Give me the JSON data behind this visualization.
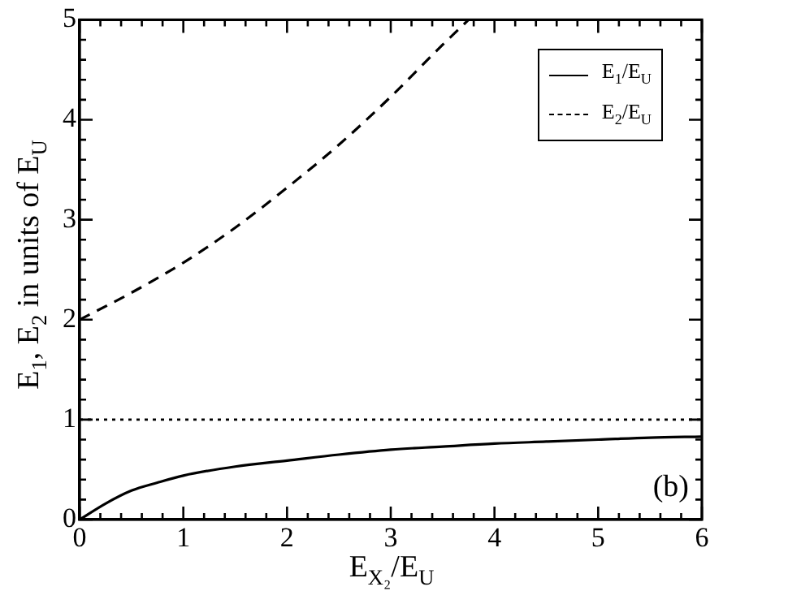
{
  "chart_data": {
    "type": "line",
    "xlabel": "E$_{X₂}$/E$_{U}$",
    "ylabel": "E$_{1}$, E$_{2}$ in units of E$_{U}$",
    "series": [
      {
        "name": "E$_{1}$/E$_{U}$",
        "color": "#000000",
        "line_style": "solid",
        "x": [
          0,
          0.25,
          0.5,
          0.75,
          1,
          1.5,
          2,
          2.5,
          3,
          3.5,
          4,
          4.5,
          5,
          5.5,
          6
        ],
        "values": [
          0,
          0.16,
          0.29,
          0.37,
          0.44,
          0.53,
          0.59,
          0.65,
          0.7,
          0.73,
          0.76,
          0.78,
          0.8,
          0.82,
          0.83
        ]
      },
      {
        "name": "E$_{2}$/E$_{U}$",
        "color": "#000000",
        "line_style": "dashed",
        "x": [
          0,
          0.5,
          1,
          1.5,
          2,
          2.5,
          3,
          3.5,
          3.75
        ],
        "values": [
          2,
          2.27,
          2.57,
          2.92,
          3.32,
          3.75,
          4.23,
          4.75,
          5
        ]
      }
    ],
    "xlim": [
      0,
      6
    ],
    "ylim": [
      0,
      5
    ],
    "xticks": [
      0,
      {
        "value": 0.2,
        "label": null
      },
      {
        "value": 0.4,
        "label": null
      },
      {
        "value": 0.6,
        "label": null
      },
      {
        "value": 0.8,
        "label": null
      },
      1,
      {
        "value": 1.2,
        "label": null
      },
      {
        "value": 1.4,
        "label": null
      },
      {
        "value": 1.6,
        "label": null
      },
      {
        "value": 1.8,
        "label": null
      },
      2,
      {
        "value": 2.2,
        "label": null
      },
      {
        "value": 2.4,
        "label": null
      },
      {
        "value": 2.6,
        "label": null
      },
      {
        "value": 2.8,
        "label": null
      },
      3,
      {
        "value": 3.2,
        "label": null
      },
      {
        "value": 3.4,
        "label": null
      },
      {
        "value": 3.6,
        "label": null
      },
      {
        "value": 3.8,
        "label": null
      },
      4,
      {
        "value": 4.2,
        "label": null
      },
      {
        "value": 4.4,
        "label": null
      },
      {
        "value": 4.6,
        "label": null
      },
      {
        "value": 4.8,
        "label": null
      },
      5,
      {
        "value": 5.2,
        "label": null
      },
      {
        "value": 5.4,
        "label": null
      },
      {
        "value": 5.6,
        "label": null
      },
      {
        "value": 5.8,
        "label": null
      },
      6
    ],
    "yticks": [
      0,
      {
        "value": 0.2,
        "label": null
      },
      {
        "value": 0.4,
        "label": null
      },
      {
        "value": 0.6,
        "label": null
      },
      {
        "value": 0.8,
        "label": null
      },
      1,
      {
        "value": 1.2,
        "label": null
      },
      {
        "value": 1.4,
        "label": null
      },
      {
        "value": 1.6,
        "label": null
      },
      {
        "value": 1.8,
        "label": null
      },
      2,
      {
        "value": 2.2,
        "label": null
      },
      {
        "value": 2.4,
        "label": null
      },
      {
        "value": 2.6,
        "label": null
      },
      {
        "value": 2.8,
        "label": null
      },
      3,
      {
        "value": 3.2,
        "label": null
      },
      {
        "value": 3.4,
        "label": null
      },
      {
        "value": 3.6,
        "label": null
      },
      {
        "value": 3.8,
        "label": null
      },
      4,
      {
        "value": 4.2,
        "label": null
      },
      {
        "value": 4.4,
        "label": null
      },
      {
        "value": 4.6,
        "label": null
      },
      {
        "value": 4.8,
        "label": null
      },
      5
    ],
    "ref_lines": [
      {
        "axis": "y",
        "value": 1,
        "color": "#000000",
        "line_style": "dotted"
      }
    ],
    "annotations": [
      "(b)"
    ],
    "grid": false,
    "legend": "top right",
    "marker": "none"
  }
}
